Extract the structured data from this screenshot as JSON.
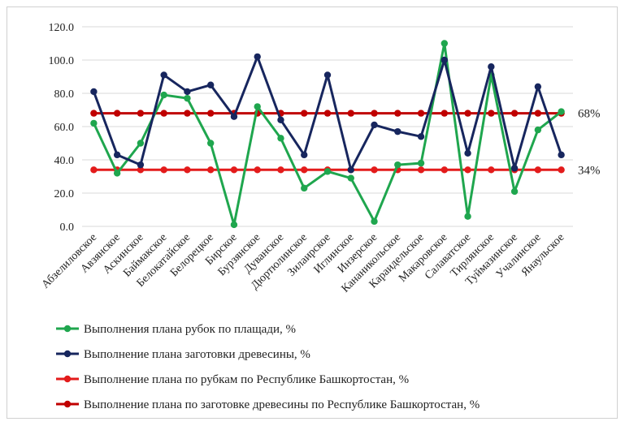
{
  "chart_data": {
    "type": "line",
    "categories": [
      "Абзелиловское",
      "Авзянское",
      "Аскинское",
      "Баймакское",
      "Белокатайское",
      "Белорецкое",
      "Бирское",
      "Бурзянское",
      "Дуванское",
      "Дюртюлинское",
      "Зилаирское",
      "Иглинское",
      "Инзерское",
      "Кананикольское",
      "Караидельское",
      "Макаровское",
      "Салаватское",
      "Тирлянское",
      "Туймазинское",
      "Учалинское",
      "Янаульское"
    ],
    "y_ticks": [
      "0.0",
      "20.0",
      "40.0",
      "60.0",
      "80.0",
      "100.0",
      "120.0"
    ],
    "ylim": [
      0,
      120
    ],
    "grid": "horizontal",
    "legend_position": "bottom",
    "series": [
      {
        "name": "Выполнения плана рубок по плащади, %",
        "color": "#1fa64e",
        "values": [
          62,
          32,
          50,
          79,
          77,
          50,
          1,
          72,
          53,
          23,
          33,
          29,
          3,
          37,
          38,
          110,
          6,
          91,
          21,
          58,
          69
        ]
      },
      {
        "name": "Выполнение плана заготовки древесины, %",
        "color": "#17265e",
        "values": [
          81,
          43,
          37,
          91,
          81,
          85,
          66,
          102,
          64,
          43,
          91,
          34,
          61,
          57,
          54,
          100,
          44,
          96,
          35,
          84,
          43
        ]
      },
      {
        "name": "Выполнение плана по рубкам по Республике Башкортостан, %",
        "color": "#e31b1b",
        "values": [
          34,
          34,
          34,
          34,
          34,
          34,
          34,
          34,
          34,
          34,
          34,
          34,
          34,
          34,
          34,
          34,
          34,
          34,
          34,
          34,
          34
        ]
      },
      {
        "name": "Выполнение плана по заготовке древесины по Республике Башкортостан, %",
        "color": "#c00000",
        "values": [
          68,
          68,
          68,
          68,
          68,
          68,
          68,
          68,
          68,
          68,
          68,
          68,
          68,
          68,
          68,
          68,
          68,
          68,
          68,
          68,
          68
        ]
      }
    ],
    "annotations": [
      {
        "text": "68%",
        "y": 68
      },
      {
        "text": "34%",
        "y": 34
      }
    ]
  }
}
